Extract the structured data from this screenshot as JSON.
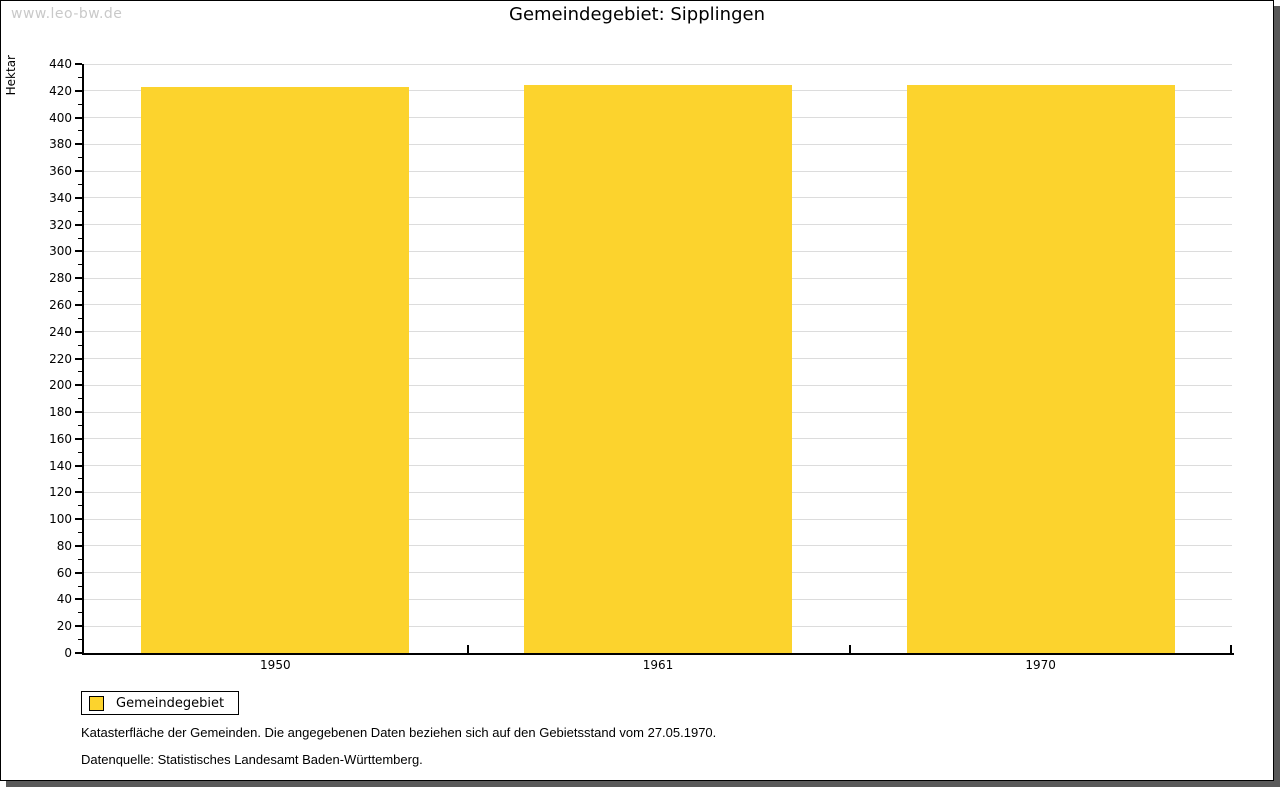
{
  "watermark": "www.leo-bw.de",
  "title": "Gemeindegebiet: Sipplingen",
  "chart_data": {
    "type": "bar",
    "categories": [
      "1950",
      "1961",
      "1970"
    ],
    "series": [
      {
        "name": "Gemeindegebiet",
        "values": [
          423,
          424,
          424
        ]
      }
    ],
    "title": "Gemeindegebiet: Sipplingen",
    "xlabel": "",
    "ylabel": "Hektar",
    "ylim": [
      0,
      440
    ],
    "ytick_step": 20,
    "ytick_minor_step": 10,
    "grid": true,
    "legend_position": "bottom-left",
    "bar_color": "#fcd32d",
    "bar_width_fraction": 0.7
  },
  "legend": {
    "items": [
      {
        "label": "Gemeindegebiet",
        "color": "#fcd32d"
      }
    ]
  },
  "footnotes": [
    "Katasterfläche der Gemeinden. Die angegebenen Daten beziehen sich auf den Gebietsstand vom 27.05.1970.",
    "Datenquelle: Statistisches Landesamt Baden-Württemberg."
  ],
  "colors": {
    "gridline": "#dcdcdc",
    "axis": "#000000",
    "watermark": "#c9c9c9",
    "frame_shadow": "#595959",
    "background": "#ffffff"
  }
}
